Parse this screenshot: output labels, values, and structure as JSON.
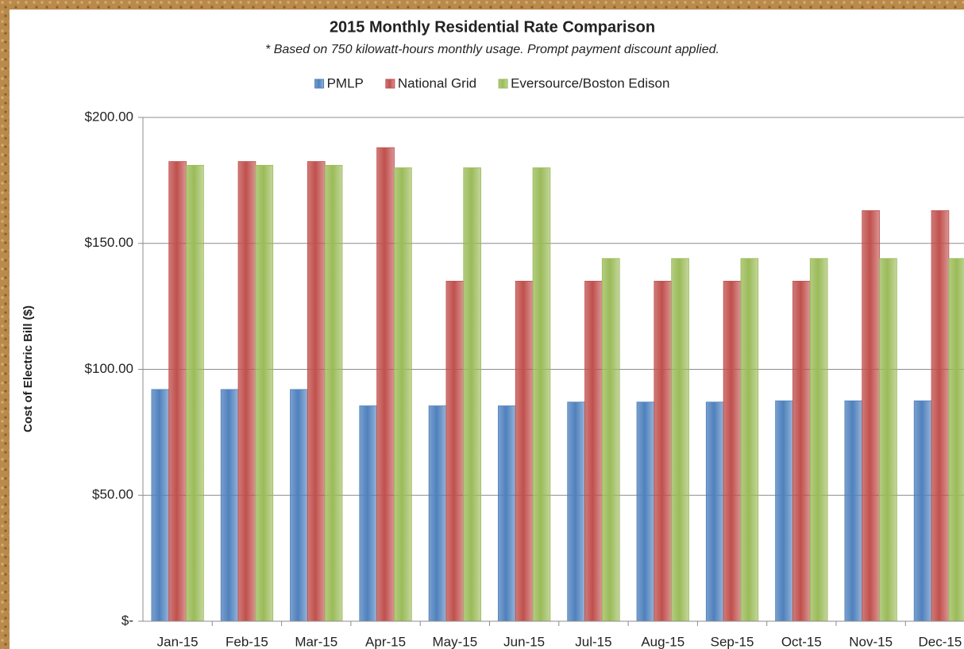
{
  "chart_data": {
    "type": "bar",
    "title": "2015 Monthly Residential Rate Comparison",
    "subtitle": "* Based on 750 kilowatt-hours monthly usage.  Prompt payment discount applied.",
    "y_axis_label": "Cost of Electric Bill ($)",
    "categories": [
      "Jan-15",
      "Feb-15",
      "Mar-15",
      "Apr-15",
      "May-15",
      "Jun-15",
      "Jul-15",
      "Aug-15",
      "Sep-15",
      "Oct-15",
      "Nov-15",
      "Dec-15"
    ],
    "series": [
      {
        "name": "PMLP",
        "color": "#4f81bd",
        "values": [
          92,
          92,
          92,
          85.5,
          85.5,
          85.5,
          87,
          87,
          87,
          87.5,
          87.5,
          87.5
        ]
      },
      {
        "name": "National Grid",
        "color": "#c0504d",
        "values": [
          182.5,
          182.5,
          182.5,
          188,
          135,
          135,
          135,
          135,
          135,
          135,
          163,
          163
        ]
      },
      {
        "name": "Eversource/Boston Edison",
        "color": "#9bbb59",
        "values": [
          181,
          181,
          181,
          180,
          180,
          180,
          144,
          144,
          144,
          144,
          144,
          144
        ]
      }
    ],
    "ylim": [
      0,
      200
    ],
    "yticks": [
      {
        "value": 0,
        "label": "$-"
      },
      {
        "value": 50,
        "label": "$50.00"
      },
      {
        "value": 100,
        "label": "$100.00"
      },
      {
        "value": 150,
        "label": "$150.00"
      },
      {
        "value": 200,
        "label": "$200.00"
      }
    ],
    "grid": true,
    "legend": "top"
  }
}
